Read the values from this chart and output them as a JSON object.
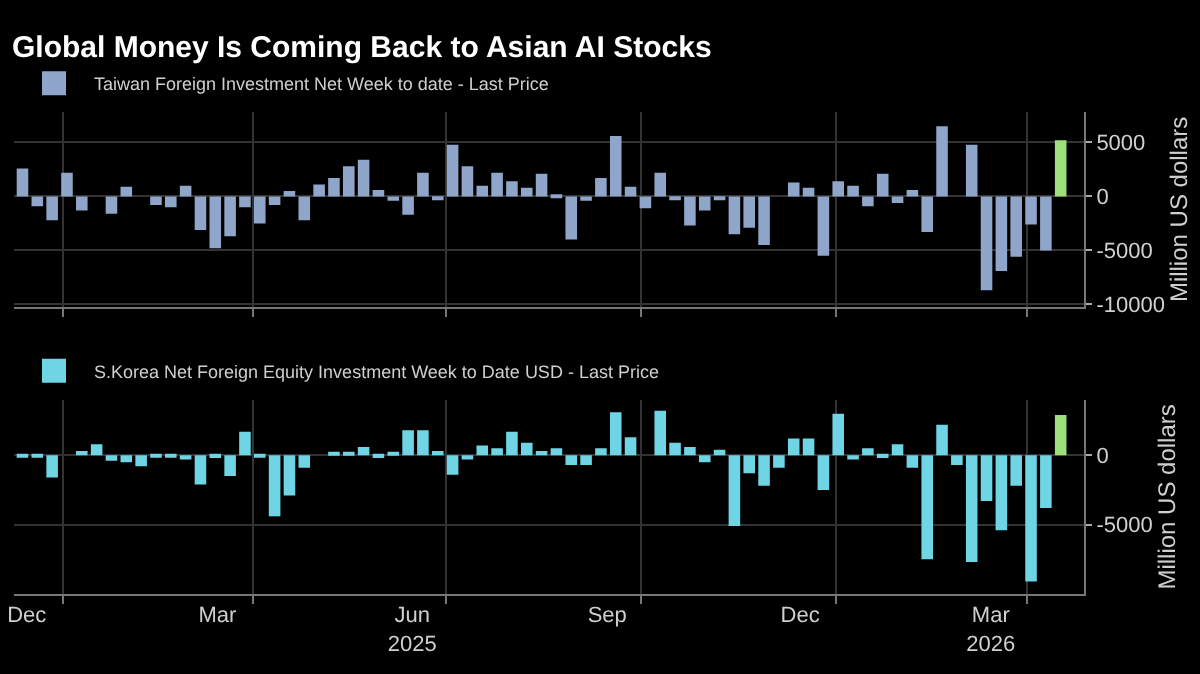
{
  "chart_data": [
    {
      "type": "bar",
      "title": "Global Money Is Coming Back to Asian AI Stocks",
      "ylabel": "Million US dollars",
      "x": [
        "2024-12-13",
        "2024-12-20",
        "2024-12-27",
        "2025-01-03",
        "2025-01-10",
        "2025-01-17",
        "2025-01-24",
        "2025-01-31",
        "2025-02-07",
        "2025-02-14",
        "2025-02-21",
        "2025-02-28",
        "2025-03-07",
        "2025-03-14",
        "2025-03-21",
        "2025-03-28",
        "2025-04-04",
        "2025-04-11",
        "2025-04-18",
        "2025-04-25",
        "2025-05-02",
        "2025-05-09",
        "2025-05-16",
        "2025-05-23",
        "2025-05-30",
        "2025-06-06",
        "2025-06-13",
        "2025-06-20",
        "2025-06-27",
        "2025-07-04",
        "2025-07-11",
        "2025-07-18",
        "2025-07-25",
        "2025-08-01",
        "2025-08-08",
        "2025-08-15",
        "2025-08-22",
        "2025-08-29",
        "2025-09-05",
        "2025-09-12",
        "2025-09-19",
        "2025-09-26",
        "2025-10-03",
        "2025-10-10",
        "2025-10-17",
        "2025-10-24",
        "2025-10-31",
        "2025-11-07",
        "2025-11-14",
        "2025-11-21",
        "2025-11-28",
        "2025-12-05",
        "2025-12-12",
        "2025-12-19",
        "2025-12-26",
        "2026-01-02",
        "2026-01-09",
        "2026-01-16",
        "2026-01-23",
        "2026-01-30",
        "2026-02-06",
        "2026-02-13",
        "2026-02-20",
        "2026-02-27",
        "2026-03-06",
        "2026-03-13",
        "2026-03-20",
        "2026-03-27",
        "2026-04-03",
        "2026-04-10",
        "2026-04-17"
      ],
      "series": [
        {
          "name": "Taiwan Foreign Investment Net Week to date - Last Price",
          "colors": [
            "#8fa5c9",
            "#8fa5c9",
            "#8fa5c9",
            "#8fa5c9",
            "#8fa5c9",
            "#8fa5c9",
            "#8fa5c9",
            "#8fa5c9",
            "#8fa5c9",
            "#8fa5c9",
            "#8fa5c9",
            "#8fa5c9",
            "#8fa5c9",
            "#8fa5c9",
            "#8fa5c9",
            "#8fa5c9",
            "#8fa5c9",
            "#8fa5c9",
            "#8fa5c9",
            "#8fa5c9",
            "#8fa5c9",
            "#8fa5c9",
            "#8fa5c9",
            "#8fa5c9",
            "#8fa5c9",
            "#8fa5c9",
            "#8fa5c9",
            "#8fa5c9",
            "#8fa5c9",
            "#8fa5c9",
            "#8fa5c9",
            "#8fa5c9",
            "#8fa5c9",
            "#8fa5c9",
            "#8fa5c9",
            "#8fa5c9",
            "#8fa5c9",
            "#8fa5c9",
            "#8fa5c9",
            "#8fa5c9",
            "#8fa5c9",
            "#8fa5c9",
            "#8fa5c9",
            "#8fa5c9",
            "#8fa5c9",
            "#8fa5c9",
            "#8fa5c9",
            "#8fa5c9",
            "#8fa5c9",
            "#8fa5c9",
            "#8fa5c9",
            "#8fa5c9",
            "#8fa5c9",
            "#8fa5c9",
            "#8fa5c9",
            "#8fa5c9",
            "#8fa5c9",
            "#8fa5c9",
            "#8fa5c9",
            "#8fa5c9",
            "#8fa5c9",
            "#8fa5c9",
            "#8fa5c9",
            "#8fa5c9",
            "#8fa5c9",
            "#8fa5c9",
            "#8fa5c9",
            "#8fa5c9",
            "#8fa5c9",
            "#8fa5c9",
            "#9be07a"
          ],
          "values": [
            2600,
            -900,
            -2200,
            2200,
            -1300,
            0,
            -1600,
            900,
            0,
            -800,
            -1000,
            1000,
            -3100,
            -4800,
            -3700,
            -1000,
            -2500,
            -800,
            500,
            -2200,
            1100,
            1700,
            2800,
            3400,
            600,
            -400,
            -1700,
            2200,
            -300,
            4800,
            2800,
            1000,
            2200,
            1400,
            800,
            2100,
            100,
            -4000,
            -400,
            1700,
            5600,
            900,
            -1100,
            2200,
            -300,
            -2700,
            -1300,
            -300,
            -3500,
            -2900,
            -4500,
            0,
            1300,
            800,
            -5500,
            1400,
            1000,
            -900,
            2100,
            -600,
            600,
            -3300,
            6500,
            0,
            4800,
            -8700,
            -6900,
            -5600,
            -2600,
            -5000,
            5200
          ]
        }
      ],
      "xlim": [
        "2024-12-09",
        "2026-04-28"
      ],
      "xticks": [
        {
          "value": "2025-01-01",
          "label": null
        },
        {
          "value": "2025-04-01",
          "label": null
        },
        {
          "value": "2025-07-01",
          "label": null
        },
        {
          "value": "2025-10-01",
          "label": null
        },
        {
          "value": "2026-01-01",
          "label": null
        },
        {
          "value": "2026-04-01",
          "label": null
        }
      ],
      "ylim": [
        -10200,
        7800
      ],
      "yticks": [
        -10000,
        -5000,
        0,
        5000
      ],
      "grid": true,
      "legend": "top left",
      "tick_labels": "y"
    },
    {
      "type": "bar",
      "ylabel": "Million US dollars",
      "x": [
        "2024-12-13",
        "2024-12-20",
        "2024-12-27",
        "2025-01-03",
        "2025-01-10",
        "2025-01-17",
        "2025-01-24",
        "2025-01-31",
        "2025-02-07",
        "2025-02-14",
        "2025-02-21",
        "2025-02-28",
        "2025-03-07",
        "2025-03-14",
        "2025-03-21",
        "2025-03-28",
        "2025-04-04",
        "2025-04-11",
        "2025-04-18",
        "2025-04-25",
        "2025-05-02",
        "2025-05-09",
        "2025-05-16",
        "2025-05-23",
        "2025-05-30",
        "2025-06-06",
        "2025-06-13",
        "2025-06-20",
        "2025-06-27",
        "2025-07-04",
        "2025-07-11",
        "2025-07-18",
        "2025-07-25",
        "2025-08-01",
        "2025-08-08",
        "2025-08-15",
        "2025-08-22",
        "2025-08-29",
        "2025-09-05",
        "2025-09-12",
        "2025-09-19",
        "2025-09-26",
        "2025-10-03",
        "2025-10-10",
        "2025-10-17",
        "2025-10-24",
        "2025-10-31",
        "2025-11-07",
        "2025-11-14",
        "2025-11-21",
        "2025-11-28",
        "2025-12-05",
        "2025-12-12",
        "2025-12-19",
        "2025-12-26",
        "2026-01-02",
        "2026-01-09",
        "2026-01-16",
        "2026-01-23",
        "2026-01-30",
        "2026-02-06",
        "2026-02-13",
        "2026-02-20",
        "2026-02-27",
        "2026-03-06",
        "2026-03-13",
        "2026-03-20",
        "2026-03-27",
        "2026-04-03",
        "2026-04-10",
        "2026-04-17"
      ],
      "series": [
        {
          "name": "S.Korea Net Foreign Equity Investment Week to Date USD - Last Price",
          "colors": [
            "#6fd4e4",
            "#6fd4e4",
            "#6fd4e4",
            "#6fd4e4",
            "#6fd4e4",
            "#6fd4e4",
            "#6fd4e4",
            "#6fd4e4",
            "#6fd4e4",
            "#6fd4e4",
            "#6fd4e4",
            "#6fd4e4",
            "#6fd4e4",
            "#6fd4e4",
            "#6fd4e4",
            "#6fd4e4",
            "#6fd4e4",
            "#6fd4e4",
            "#6fd4e4",
            "#6fd4e4",
            "#6fd4e4",
            "#6fd4e4",
            "#6fd4e4",
            "#6fd4e4",
            "#6fd4e4",
            "#6fd4e4",
            "#6fd4e4",
            "#6fd4e4",
            "#6fd4e4",
            "#6fd4e4",
            "#6fd4e4",
            "#6fd4e4",
            "#6fd4e4",
            "#6fd4e4",
            "#6fd4e4",
            "#6fd4e4",
            "#6fd4e4",
            "#6fd4e4",
            "#6fd4e4",
            "#6fd4e4",
            "#6fd4e4",
            "#6fd4e4",
            "#6fd4e4",
            "#6fd4e4",
            "#6fd4e4",
            "#6fd4e4",
            "#6fd4e4",
            "#6fd4e4",
            "#6fd4e4",
            "#6fd4e4",
            "#6fd4e4",
            "#6fd4e4",
            "#6fd4e4",
            "#6fd4e4",
            "#6fd4e4",
            "#6fd4e4",
            "#6fd4e4",
            "#6fd4e4",
            "#6fd4e4",
            "#6fd4e4",
            "#6fd4e4",
            "#6fd4e4",
            "#6fd4e4",
            "#6fd4e4",
            "#6fd4e4",
            "#6fd4e4",
            "#6fd4e4",
            "#6fd4e4",
            "#6fd4e4",
            "#6fd4e4",
            "#9be07a"
          ],
          "values": [
            -100,
            -100,
            -1600,
            0,
            300,
            800,
            -400,
            -500,
            -800,
            -100,
            -100,
            -300,
            -2100,
            -200,
            -1500,
            1700,
            -100,
            -4400,
            -2900,
            -900,
            0,
            200,
            200,
            600,
            -200,
            200,
            1800,
            1800,
            300,
            -1400,
            -300,
            700,
            500,
            1700,
            900,
            300,
            500,
            -700,
            -700,
            500,
            3100,
            1300,
            0,
            3200,
            900,
            600,
            -500,
            400,
            -5100,
            -1300,
            -2200,
            -900,
            1200,
            1200,
            -2500,
            3000,
            -300,
            500,
            -200,
            800,
            -900,
            -7500,
            2200,
            -700,
            -7700,
            -3300,
            -5400,
            -2200,
            -9100,
            -3800,
            2900
          ]
        }
      ],
      "xlim": [
        "2024-12-09",
        "2026-04-28"
      ],
      "xticks": [
        {
          "value": "2025-01-01",
          "label": null
        },
        {
          "value": "2025-04-01",
          "label": null
        },
        {
          "value": "2025-07-01",
          "label": null
        },
        {
          "value": "2025-10-01",
          "label": null
        },
        {
          "value": "2026-01-01",
          "label": null
        },
        {
          "value": "2026-04-01",
          "label": null
        },
        {
          "value": "2024-12-15",
          "label": "Dec"
        },
        {
          "value": "2025-03-15",
          "label": "Mar"
        },
        {
          "value": "2025-06-15",
          "label": "Jun\n2025"
        },
        {
          "value": "2025-09-15",
          "label": "Sep"
        },
        {
          "value": "2025-12-15",
          "label": "Dec"
        },
        {
          "value": "2026-03-15",
          "label": "Mar\n2026"
        }
      ],
      "ylim": [
        -10000,
        4000
      ],
      "yticks": [
        -5000,
        0
      ],
      "grid": true,
      "legend": "top left"
    }
  ]
}
